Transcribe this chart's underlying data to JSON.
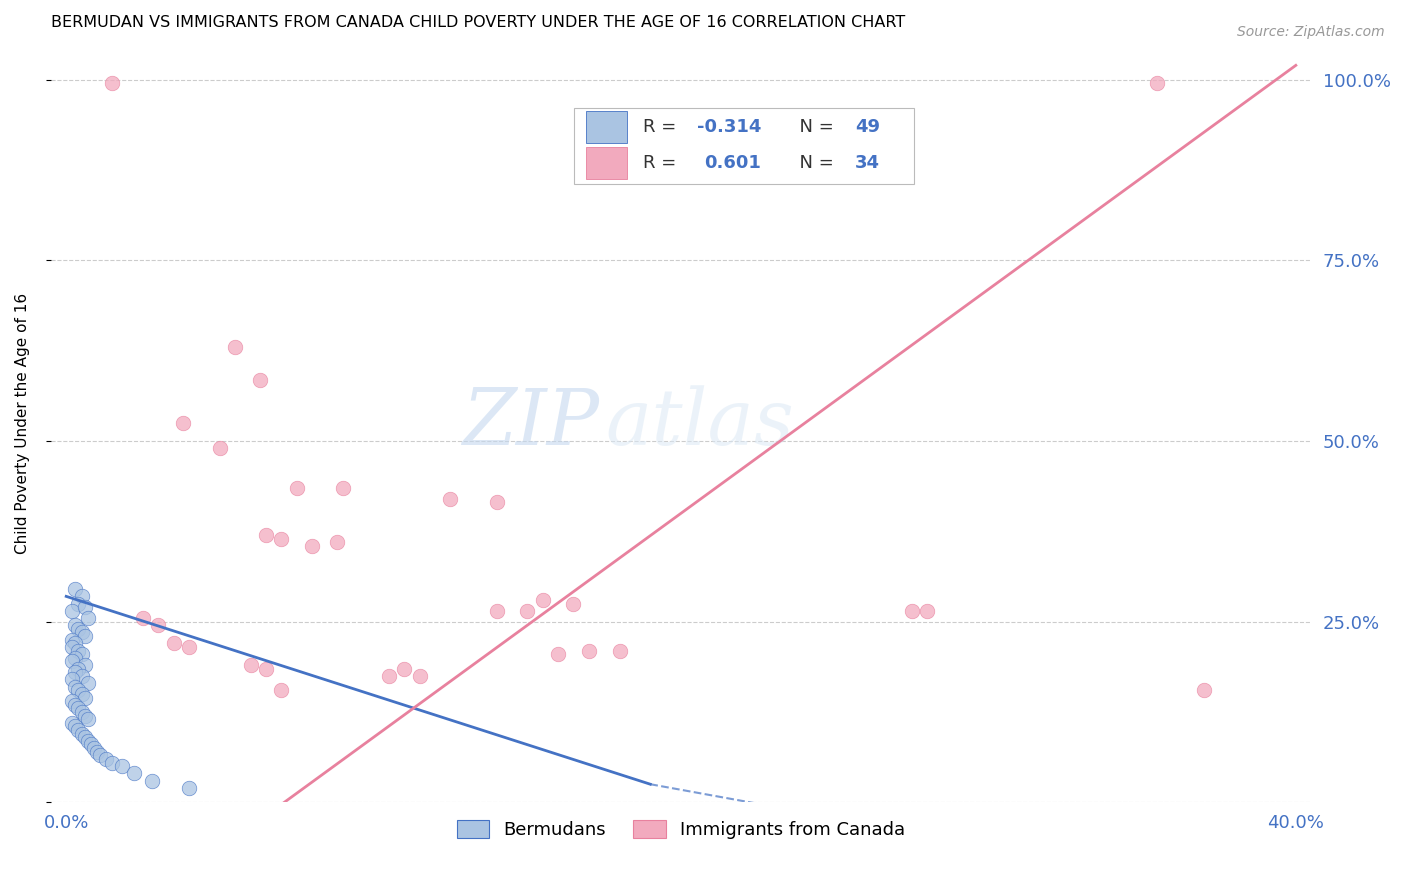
{
  "title": "BERMUDAN VS IMMIGRANTS FROM CANADA CHILD POVERTY UNDER THE AGE OF 16 CORRELATION CHART",
  "source": "Source: ZipAtlas.com",
  "ylabel": "Child Poverty Under the Age of 16",
  "watermark_zip": "ZIP",
  "watermark_atlas": "atlas",
  "blue_R": -0.314,
  "blue_N": 49,
  "pink_R": 0.601,
  "pink_N": 34,
  "blue_color": "#aac4e2",
  "pink_color": "#f2aabe",
  "blue_line_color": "#4472c4",
  "pink_line_color": "#e8819e",
  "blue_scatter": [
    [
      0.003,
      0.295
    ],
    [
      0.005,
      0.285
    ],
    [
      0.004,
      0.275
    ],
    [
      0.002,
      0.265
    ],
    [
      0.006,
      0.27
    ],
    [
      0.007,
      0.255
    ],
    [
      0.003,
      0.245
    ],
    [
      0.004,
      0.24
    ],
    [
      0.005,
      0.235
    ],
    [
      0.002,
      0.225
    ],
    [
      0.006,
      0.23
    ],
    [
      0.003,
      0.22
    ],
    [
      0.002,
      0.215
    ],
    [
      0.004,
      0.21
    ],
    [
      0.005,
      0.205
    ],
    [
      0.003,
      0.2
    ],
    [
      0.002,
      0.195
    ],
    [
      0.006,
      0.19
    ],
    [
      0.004,
      0.185
    ],
    [
      0.003,
      0.18
    ],
    [
      0.005,
      0.175
    ],
    [
      0.002,
      0.17
    ],
    [
      0.007,
      0.165
    ],
    [
      0.003,
      0.16
    ],
    [
      0.004,
      0.155
    ],
    [
      0.005,
      0.15
    ],
    [
      0.006,
      0.145
    ],
    [
      0.002,
      0.14
    ],
    [
      0.003,
      0.135
    ],
    [
      0.004,
      0.13
    ],
    [
      0.005,
      0.125
    ],
    [
      0.006,
      0.12
    ],
    [
      0.007,
      0.115
    ],
    [
      0.002,
      0.11
    ],
    [
      0.003,
      0.105
    ],
    [
      0.004,
      0.1
    ],
    [
      0.005,
      0.095
    ],
    [
      0.006,
      0.09
    ],
    [
      0.007,
      0.085
    ],
    [
      0.008,
      0.08
    ],
    [
      0.009,
      0.075
    ],
    [
      0.01,
      0.07
    ],
    [
      0.011,
      0.065
    ],
    [
      0.013,
      0.06
    ],
    [
      0.015,
      0.055
    ],
    [
      0.018,
      0.05
    ],
    [
      0.022,
      0.04
    ],
    [
      0.028,
      0.03
    ],
    [
      0.04,
      0.02
    ]
  ],
  "pink_scatter": [
    [
      0.015,
      0.995
    ],
    [
      0.355,
      0.995
    ],
    [
      0.055,
      0.63
    ],
    [
      0.063,
      0.585
    ],
    [
      0.038,
      0.525
    ],
    [
      0.05,
      0.49
    ],
    [
      0.075,
      0.435
    ],
    [
      0.09,
      0.435
    ],
    [
      0.125,
      0.42
    ],
    [
      0.14,
      0.415
    ],
    [
      0.065,
      0.37
    ],
    [
      0.07,
      0.365
    ],
    [
      0.08,
      0.355
    ],
    [
      0.088,
      0.36
    ],
    [
      0.155,
      0.28
    ],
    [
      0.165,
      0.275
    ],
    [
      0.14,
      0.265
    ],
    [
      0.15,
      0.265
    ],
    [
      0.275,
      0.265
    ],
    [
      0.28,
      0.265
    ],
    [
      0.17,
      0.21
    ],
    [
      0.18,
      0.21
    ],
    [
      0.16,
      0.205
    ],
    [
      0.025,
      0.255
    ],
    [
      0.03,
      0.245
    ],
    [
      0.035,
      0.22
    ],
    [
      0.04,
      0.215
    ],
    [
      0.06,
      0.19
    ],
    [
      0.065,
      0.185
    ],
    [
      0.105,
      0.175
    ],
    [
      0.07,
      0.155
    ],
    [
      0.37,
      0.155
    ],
    [
      0.11,
      0.185
    ],
    [
      0.115,
      0.175
    ]
  ],
  "blue_line": [
    [
      0.0,
      0.285
    ],
    [
      0.19,
      0.025
    ]
  ],
  "blue_line_dashed": [
    [
      0.19,
      0.025
    ],
    [
      0.3,
      -0.06
    ]
  ],
  "pink_line": [
    [
      0.0,
      -0.22
    ],
    [
      0.4,
      1.02
    ]
  ],
  "x_ticks": [
    0.0,
    0.05,
    0.1,
    0.15,
    0.2,
    0.25,
    0.3,
    0.35,
    0.4
  ],
  "y_ticks": [
    0.0,
    0.25,
    0.5,
    0.75,
    1.0
  ],
  "y_tick_labels_right": [
    "",
    "25.0%",
    "50.0%",
    "75.0%",
    "100.0%"
  ],
  "grid_color": "#cccccc",
  "background_color": "#ffffff",
  "xlim": [
    -0.005,
    0.405
  ],
  "ylim": [
    0.0,
    1.05
  ]
}
